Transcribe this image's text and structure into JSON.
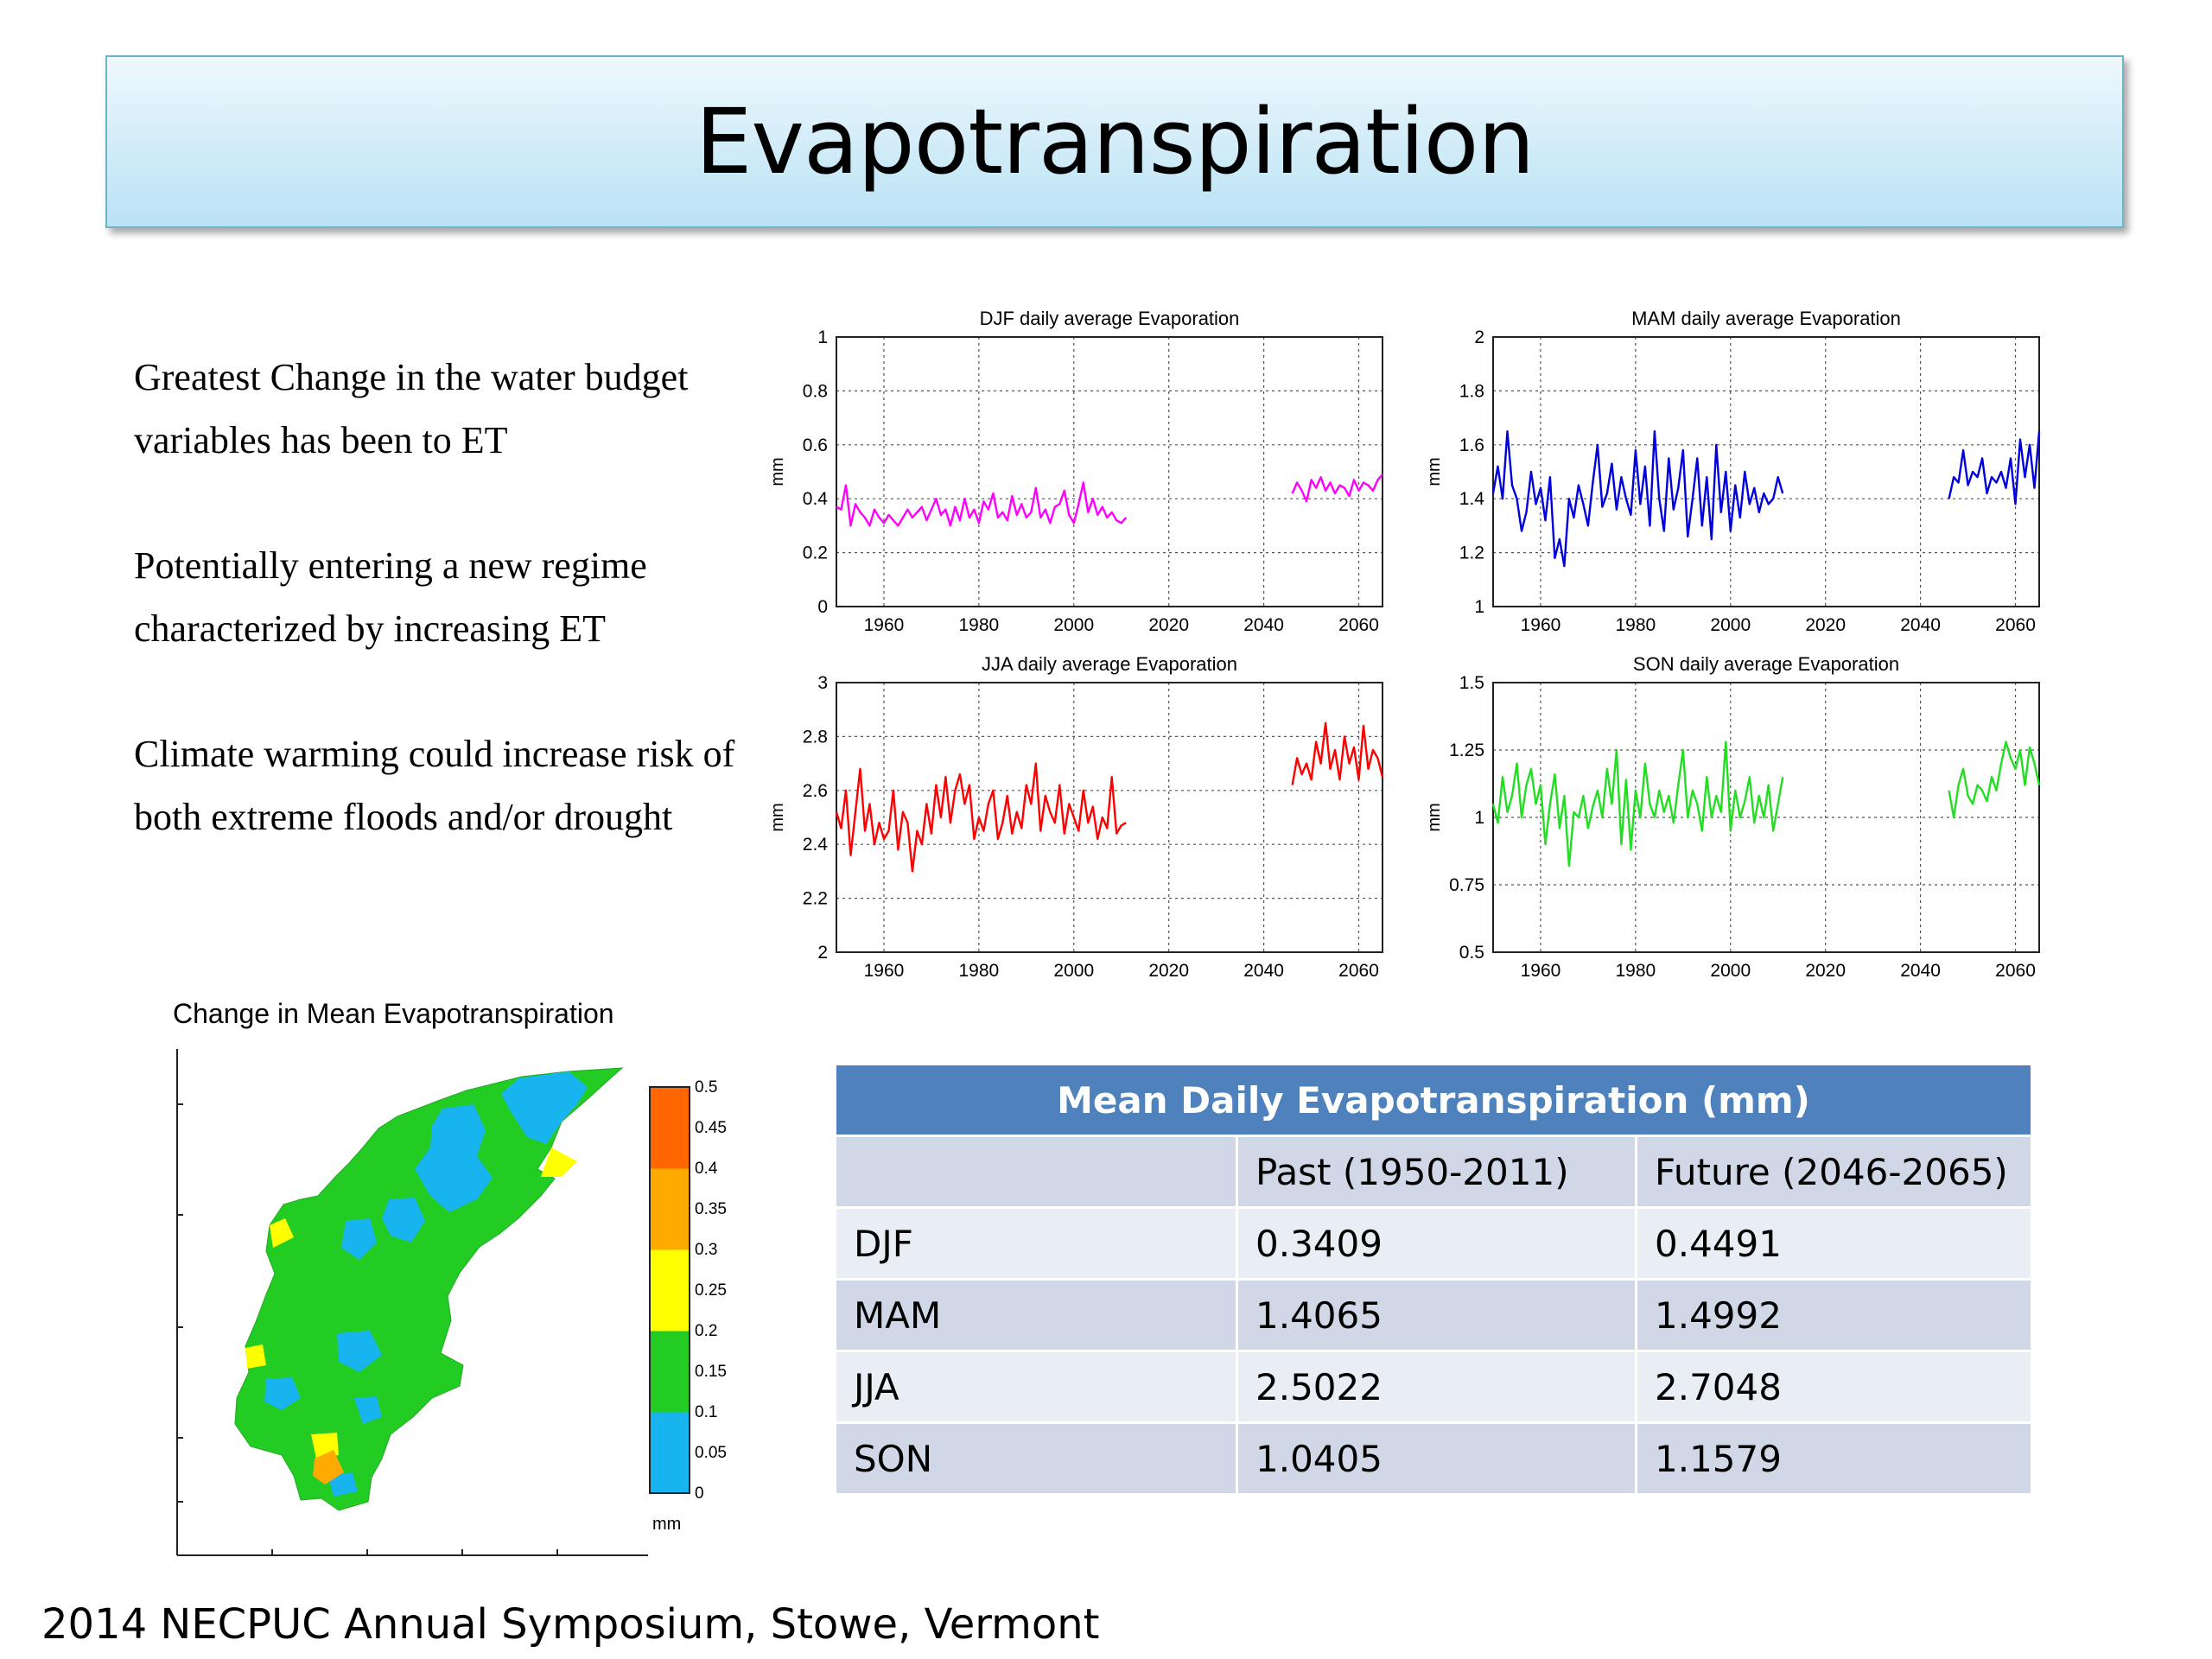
{
  "title": "Evapotranspiration",
  "bullets": [
    "Greatest Change in the water budget variables has been to ET",
    "Potentially entering a new regime characterized by increasing ET",
    "Climate warming could  increase risk of both extreme floods and/or drought"
  ],
  "footer": "2014 NECPUC Annual Symposium, Stowe, Vermont",
  "table": {
    "title": "Mean Daily Evapotranspiration (mm)",
    "columns": [
      "",
      "Past (1950-2011)",
      "Future (2046-2065)"
    ],
    "rows": [
      [
        "DJF",
        "0.3409",
        "0.4491"
      ],
      [
        "MAM",
        "1.4065",
        "1.4992"
      ],
      [
        "JJA",
        "2.5022",
        "2.7048"
      ],
      [
        "SON",
        "1.0405",
        "1.1579"
      ]
    ]
  },
  "map": {
    "title": "Change in Mean Evapotranspiration",
    "colorbar_unit": "mm",
    "colorbar_ticks": [
      "0",
      "0.05",
      "0.1",
      "0.15",
      "0.2",
      "0.25",
      "0.3",
      "0.35",
      "0.4",
      "0.45",
      "0.5"
    ],
    "colorbar_colors": [
      "#18b4f0",
      "#18b4f0",
      "#22cc22",
      "#22cc22",
      "#ffff00",
      "#ffff00",
      "#ffaa00",
      "#ffaa00",
      "#ff6600",
      "#ff6600"
    ],
    "zone_colors": {
      "low": "#18b4f0",
      "mid": "#22cc22",
      "high": "#ffff00",
      "peak": "#ffaa00"
    }
  },
  "chart_data": [
    {
      "type": "line",
      "title": "DJF daily average Evaporation",
      "ylabel": "mm",
      "xlim": [
        1950,
        2065
      ],
      "ylim": [
        0,
        1
      ],
      "xticks": [
        1960,
        1980,
        2000,
        2020,
        2040,
        2060
      ],
      "yticks": [
        "0",
        "0.2",
        "0.4",
        "0.6",
        "0.8",
        "1"
      ],
      "color": "#ff00ff",
      "grid": true,
      "series": [
        {
          "x_start": 1950,
          "values": [
            0.37,
            0.36,
            0.45,
            0.3,
            0.38,
            0.35,
            0.33,
            0.3,
            0.36,
            0.33,
            0.31,
            0.34,
            0.32,
            0.3,
            0.33,
            0.36,
            0.33,
            0.35,
            0.37,
            0.32,
            0.36,
            0.4,
            0.34,
            0.36,
            0.3,
            0.37,
            0.32,
            0.4,
            0.33,
            0.36,
            0.31,
            0.39,
            0.36,
            0.42,
            0.33,
            0.35,
            0.32,
            0.41,
            0.34,
            0.38,
            0.33,
            0.35,
            0.44,
            0.33,
            0.36,
            0.31,
            0.37,
            0.38,
            0.43,
            0.34,
            0.31,
            0.38,
            0.46,
            0.35,
            0.4,
            0.34,
            0.37,
            0.33,
            0.35,
            0.32,
            0.31,
            0.33
          ]
        },
        {
          "x_start": 2046,
          "values": [
            0.42,
            0.46,
            0.43,
            0.39,
            0.47,
            0.44,
            0.48,
            0.43,
            0.46,
            0.42,
            0.45,
            0.44,
            0.41,
            0.47,
            0.43,
            0.46,
            0.45,
            0.43,
            0.47,
            0.49
          ]
        }
      ]
    },
    {
      "type": "line",
      "title": "MAM daily average Evaporation",
      "ylabel": "mm",
      "xlim": [
        1950,
        2065
      ],
      "ylim": [
        1,
        2
      ],
      "xticks": [
        1960,
        1980,
        2000,
        2020,
        2040,
        2060
      ],
      "yticks": [
        "1",
        "1.2",
        "1.4",
        "1.6",
        "1.8",
        "2"
      ],
      "color": "#0000dd",
      "grid": true,
      "series": [
        {
          "x_start": 1950,
          "values": [
            1.42,
            1.52,
            1.4,
            1.65,
            1.45,
            1.4,
            1.28,
            1.35,
            1.5,
            1.38,
            1.44,
            1.32,
            1.48,
            1.18,
            1.25,
            1.15,
            1.4,
            1.33,
            1.45,
            1.38,
            1.3,
            1.46,
            1.6,
            1.37,
            1.42,
            1.53,
            1.36,
            1.48,
            1.4,
            1.34,
            1.58,
            1.38,
            1.52,
            1.3,
            1.65,
            1.4,
            1.28,
            1.55,
            1.36,
            1.44,
            1.58,
            1.26,
            1.4,
            1.55,
            1.3,
            1.48,
            1.25,
            1.6,
            1.35,
            1.5,
            1.28,
            1.45,
            1.33,
            1.5,
            1.38,
            1.44,
            1.35,
            1.42,
            1.38,
            1.4,
            1.48,
            1.42
          ]
        },
        {
          "x_start": 2046,
          "values": [
            1.4,
            1.48,
            1.46,
            1.58,
            1.45,
            1.5,
            1.48,
            1.55,
            1.42,
            1.48,
            1.46,
            1.5,
            1.44,
            1.55,
            1.38,
            1.62,
            1.48,
            1.6,
            1.44,
            1.65
          ]
        }
      ]
    },
    {
      "type": "line",
      "title": "JJA daily average Evaporation",
      "ylabel": "mm",
      "xlim": [
        1950,
        2065
      ],
      "ylim": [
        2,
        3
      ],
      "xticks": [
        1960,
        1980,
        2000,
        2020,
        2040,
        2060
      ],
      "yticks": [
        "2",
        "2.2",
        "2.4",
        "2.6",
        "2.8",
        "3"
      ],
      "color": "#ff0000",
      "grid": true,
      "series": [
        {
          "x_start": 1950,
          "values": [
            2.52,
            2.46,
            2.6,
            2.36,
            2.52,
            2.68,
            2.45,
            2.55,
            2.4,
            2.48,
            2.42,
            2.45,
            2.6,
            2.38,
            2.52,
            2.48,
            2.3,
            2.45,
            2.4,
            2.55,
            2.44,
            2.62,
            2.5,
            2.65,
            2.48,
            2.6,
            2.66,
            2.55,
            2.62,
            2.42,
            2.5,
            2.45,
            2.55,
            2.6,
            2.42,
            2.48,
            2.58,
            2.44,
            2.52,
            2.46,
            2.62,
            2.55,
            2.7,
            2.45,
            2.58,
            2.52,
            2.48,
            2.62,
            2.44,
            2.55,
            2.5,
            2.45,
            2.6,
            2.48,
            2.54,
            2.42,
            2.5,
            2.46,
            2.65,
            2.44,
            2.47,
            2.48
          ]
        },
        {
          "x_start": 2046,
          "values": [
            2.62,
            2.72,
            2.66,
            2.7,
            2.64,
            2.78,
            2.7,
            2.85,
            2.68,
            2.75,
            2.64,
            2.8,
            2.7,
            2.76,
            2.64,
            2.84,
            2.68,
            2.75,
            2.72,
            2.65
          ]
        }
      ]
    },
    {
      "type": "line",
      "title": "SON daily average Evaporation",
      "ylabel": "mm",
      "xlim": [
        1950,
        2065
      ],
      "ylim": [
        0.5,
        1.5
      ],
      "xticks": [
        1960,
        1980,
        2000,
        2020,
        2040,
        2060
      ],
      "yticks": [
        "0.5",
        "0.75",
        "1",
        "1.25",
        "1.5"
      ],
      "color": "#22dd22",
      "grid": true,
      "series": [
        {
          "x_start": 1950,
          "values": [
            1.05,
            0.98,
            1.15,
            1.02,
            1.08,
            1.2,
            1.0,
            1.12,
            1.18,
            1.05,
            1.12,
            0.9,
            1.05,
            1.16,
            0.96,
            1.08,
            0.82,
            1.02,
            1.0,
            1.08,
            0.96,
            1.04,
            1.1,
            1.0,
            1.18,
            1.05,
            1.25,
            0.9,
            1.14,
            0.88,
            1.1,
            1.0,
            1.2,
            1.05,
            1.0,
            1.1,
            1.02,
            1.08,
            0.98,
            1.12,
            1.25,
            1.0,
            1.1,
            1.05,
            0.95,
            1.15,
            1.0,
            1.08,
            1.02,
            1.28,
            0.95,
            1.1,
            1.0,
            1.06,
            1.15,
            0.98,
            1.08,
            1.0,
            1.12,
            0.95,
            1.05,
            1.15
          ]
        },
        {
          "x_start": 2046,
          "values": [
            1.1,
            1.0,
            1.12,
            1.18,
            1.08,
            1.05,
            1.12,
            1.1,
            1.06,
            1.15,
            1.1,
            1.2,
            1.28,
            1.22,
            1.18,
            1.25,
            1.12,
            1.26,
            1.2,
            1.12
          ]
        }
      ]
    }
  ]
}
